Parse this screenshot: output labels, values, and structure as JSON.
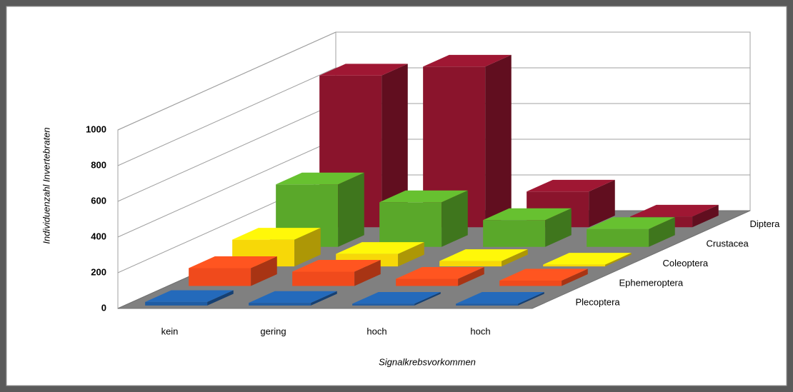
{
  "chart_data": {
    "type": "bar3d",
    "x_label": "Signalkrebsvorkommen",
    "y_label": "Individuenzahl Invertebraten",
    "categories": [
      "kein",
      "gering",
      "hoch",
      "hoch"
    ],
    "series": [
      {
        "name": "Plecoptera",
        "color": "#1f5ca3",
        "values": [
          20,
          15,
          10,
          10
        ]
      },
      {
        "name": "Ephemeroptera",
        "color": "#f04a1c",
        "values": [
          100,
          80,
          40,
          30
        ]
      },
      {
        "name": "Coleoptera",
        "color": "#f7d808",
        "values": [
          150,
          70,
          30,
          10
        ]
      },
      {
        "name": "Crustacea",
        "color": "#5aa82a",
        "values": [
          350,
          250,
          150,
          100
        ]
      },
      {
        "name": "Diptera",
        "color": "#8a142c",
        "values": [
          850,
          900,
          200,
          60
        ]
      }
    ],
    "ylim": [
      0,
      1000
    ],
    "yticks": [
      0,
      200,
      400,
      600,
      800,
      1000
    ],
    "grid": true
  }
}
